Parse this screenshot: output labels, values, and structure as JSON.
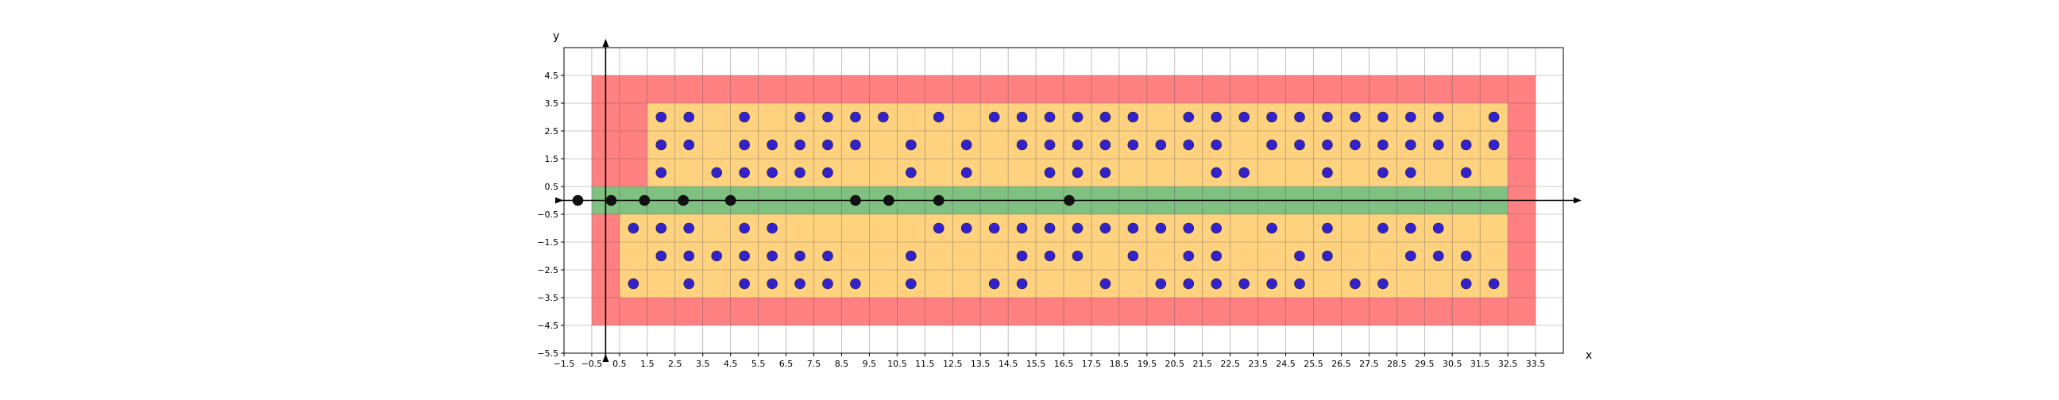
{
  "chart_data": {
    "type": "scatter",
    "title": "",
    "xlabel": "x",
    "ylabel": "y",
    "xlim": [
      -1.5,
      34.5
    ],
    "ylim": [
      -5.5,
      5.5
    ],
    "xticks": [
      -1.5,
      -0.5,
      0.5,
      1.5,
      2.5,
      3.5,
      4.5,
      5.5,
      6.5,
      7.5,
      8.5,
      9.5,
      10.5,
      11.5,
      12.5,
      13.5,
      14.5,
      15.5,
      16.5,
      17.5,
      18.5,
      19.5,
      20.5,
      21.5,
      22.5,
      23.5,
      24.5,
      25.5,
      26.5,
      27.5,
      28.5,
      29.5,
      30.5,
      31.5,
      32.5,
      33.5
    ],
    "yticks": [
      -5.5,
      -4.5,
      -3.5,
      -2.5,
      -1.5,
      -0.5,
      0.5,
      1.5,
      2.5,
      3.5,
      4.5
    ],
    "xticklabels": [
      "−1.5",
      "−0.5",
      "0.5",
      "1.5",
      "2.5",
      "3.5",
      "4.5",
      "5.5",
      "6.5",
      "7.5",
      "8.5",
      "9.5",
      "10.5",
      "11.5",
      "12.5",
      "13.5",
      "14.5",
      "15.5",
      "16.5",
      "17.5",
      "18.5",
      "19.5",
      "20.5",
      "21.5",
      "22.5",
      "23.5",
      "24.5",
      "25.5",
      "26.5",
      "27.5",
      "28.5",
      "29.5",
      "30.5",
      "31.5",
      "32.5",
      "33.5"
    ],
    "yticklabels": [
      "−5.5",
      "−4.5",
      "−3.5",
      "−2.5",
      "−1.5",
      "−0.5",
      "0.5",
      "1.5",
      "2.5",
      "3.5",
      "4.5"
    ],
    "grid": true,
    "regions": [
      {
        "color": "#ff8080",
        "x": [
          -0.5,
          33.5
        ],
        "y": [
          -4.5,
          4.5
        ]
      },
      {
        "color": "#ffd280",
        "x": [
          0.5,
          32.5
        ],
        "y": [
          -3.5,
          -0.5
        ]
      },
      {
        "color": "#ffd280",
        "x": [
          1.5,
          32.5
        ],
        "y": [
          0.5,
          3.5
        ]
      },
      {
        "color": "#80c080",
        "x": [
          -0.5,
          32.5
        ],
        "y": [
          -0.5,
          0.5
        ]
      }
    ],
    "series": [
      {
        "color": "#3322cc",
        "points": [
          [
            2,
            3
          ],
          [
            3,
            3
          ],
          [
            5,
            3
          ],
          [
            7,
            3
          ],
          [
            8,
            3
          ],
          [
            9,
            3
          ],
          [
            10,
            3
          ],
          [
            12,
            3
          ],
          [
            14,
            3
          ],
          [
            15,
            3
          ],
          [
            16,
            3
          ],
          [
            17,
            3
          ],
          [
            18,
            3
          ],
          [
            19,
            3
          ],
          [
            21,
            3
          ],
          [
            22,
            3
          ],
          [
            23,
            3
          ],
          [
            24,
            3
          ],
          [
            25,
            3
          ],
          [
            26,
            3
          ],
          [
            27,
            3
          ],
          [
            28,
            3
          ],
          [
            29,
            3
          ],
          [
            30,
            3
          ],
          [
            32,
            3
          ],
          [
            2,
            2
          ],
          [
            3,
            2
          ],
          [
            5,
            2
          ],
          [
            6,
            2
          ],
          [
            7,
            2
          ],
          [
            8,
            2
          ],
          [
            9,
            2
          ],
          [
            11,
            2
          ],
          [
            13,
            2
          ],
          [
            15,
            2
          ],
          [
            16,
            2
          ],
          [
            17,
            2
          ],
          [
            18,
            2
          ],
          [
            19,
            2
          ],
          [
            20,
            2
          ],
          [
            21,
            2
          ],
          [
            22,
            2
          ],
          [
            24,
            2
          ],
          [
            25,
            2
          ],
          [
            26,
            2
          ],
          [
            27,
            2
          ],
          [
            28,
            2
          ],
          [
            29,
            2
          ],
          [
            30,
            2
          ],
          [
            31,
            2
          ],
          [
            32,
            2
          ],
          [
            2,
            1
          ],
          [
            4,
            1
          ],
          [
            5,
            1
          ],
          [
            6,
            1
          ],
          [
            7,
            1
          ],
          [
            8,
            1
          ],
          [
            11,
            1
          ],
          [
            13,
            1
          ],
          [
            16,
            1
          ],
          [
            17,
            1
          ],
          [
            18,
            1
          ],
          [
            22,
            1
          ],
          [
            23,
            1
          ],
          [
            26,
            1
          ],
          [
            28,
            1
          ],
          [
            29,
            1
          ],
          [
            31,
            1
          ],
          [
            1,
            -1
          ],
          [
            2,
            -1
          ],
          [
            3,
            -1
          ],
          [
            5,
            -1
          ],
          [
            6,
            -1
          ],
          [
            12,
            -1
          ],
          [
            13,
            -1
          ],
          [
            14,
            -1
          ],
          [
            15,
            -1
          ],
          [
            16,
            -1
          ],
          [
            17,
            -1
          ],
          [
            18,
            -1
          ],
          [
            19,
            -1
          ],
          [
            20,
            -1
          ],
          [
            21,
            -1
          ],
          [
            22,
            -1
          ],
          [
            24,
            -1
          ],
          [
            26,
            -1
          ],
          [
            28,
            -1
          ],
          [
            29,
            -1
          ],
          [
            30,
            -1
          ],
          [
            2,
            -2
          ],
          [
            3,
            -2
          ],
          [
            4,
            -2
          ],
          [
            5,
            -2
          ],
          [
            6,
            -2
          ],
          [
            7,
            -2
          ],
          [
            8,
            -2
          ],
          [
            11,
            -2
          ],
          [
            15,
            -2
          ],
          [
            16,
            -2
          ],
          [
            17,
            -2
          ],
          [
            19,
            -2
          ],
          [
            21,
            -2
          ],
          [
            22,
            -2
          ],
          [
            25,
            -2
          ],
          [
            26,
            -2
          ],
          [
            29,
            -2
          ],
          [
            30,
            -2
          ],
          [
            31,
            -2
          ],
          [
            1,
            -3
          ],
          [
            3,
            -3
          ],
          [
            5,
            -3
          ],
          [
            6,
            -3
          ],
          [
            7,
            -3
          ],
          [
            8,
            -3
          ],
          [
            9,
            -3
          ],
          [
            11,
            -3
          ],
          [
            14,
            -3
          ],
          [
            15,
            -3
          ],
          [
            18,
            -3
          ],
          [
            20,
            -3
          ],
          [
            21,
            -3
          ],
          [
            22,
            -3
          ],
          [
            23,
            -3
          ],
          [
            24,
            -3
          ],
          [
            25,
            -3
          ],
          [
            27,
            -3
          ],
          [
            28,
            -3
          ],
          [
            31,
            -3
          ],
          [
            32,
            -3
          ]
        ]
      },
      {
        "color": "#111111",
        "points": [
          [
            -1,
            0
          ],
          [
            0.2,
            0
          ],
          [
            1.4,
            0
          ],
          [
            2.8,
            0
          ],
          [
            4.5,
            0
          ],
          [
            9,
            0
          ],
          [
            10.2,
            0
          ],
          [
            12,
            0
          ],
          [
            16.7,
            0
          ]
        ]
      }
    ]
  }
}
